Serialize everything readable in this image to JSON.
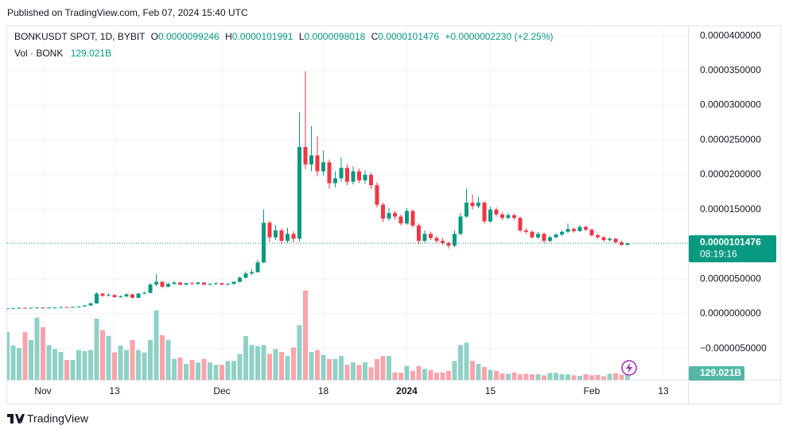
{
  "published": "Published on TradingView.com, Feb 07, 2024 15:40 UTC",
  "brand": "TradingView",
  "legend": {
    "symbol": "BONKUSDT SPOT, 1D, BYBIT",
    "o_key": "O",
    "o": "0.0000099246",
    "h_key": "H",
    "h": "0.0000101991",
    "l_key": "L",
    "l": "0.0000098018",
    "c_key": "C",
    "c": "0.0000101476",
    "change": "+0.0000002230 (+2.25%)",
    "vol_key": "Vol · BONK",
    "vol": "129.021B"
  },
  "chart_data": {
    "type": "candlestick",
    "up_color": "#089981",
    "down_color": "#f23645",
    "xlim": [
      0,
      114
    ],
    "xticks": [
      {
        "value": 6,
        "label": "Nov"
      },
      {
        "value": 18,
        "label": "13"
      },
      {
        "value": 36,
        "label": "Dec"
      },
      {
        "value": 53,
        "label": "18"
      },
      {
        "value": 67,
        "label": "2024"
      },
      {
        "value": 81,
        "label": "15"
      },
      {
        "value": 98,
        "label": "Feb"
      },
      {
        "value": 110,
        "label": "13"
      }
    ],
    "ylim": [
      -9.5e-06,
      4.15e-05
    ],
    "yticks": [
      {
        "value": 4e-05,
        "label": "0.0000400000"
      },
      {
        "value": 3.5e-05,
        "label": "0.0000350000"
      },
      {
        "value": 3e-05,
        "label": "0.0000300000"
      },
      {
        "value": 2.5e-05,
        "label": "0.0000250000"
      },
      {
        "value": 2e-05,
        "label": "0.0000200000"
      },
      {
        "value": 1.5e-05,
        "label": "0.0000150000"
      },
      {
        "value": 5e-06,
        "label": "0.0000050000"
      },
      {
        "value": 0,
        "label": "0.0000000000"
      },
      {
        "value": -5e-06,
        "label": "−0.0000050000"
      }
    ],
    "grid": true,
    "last_price_label": "0.0000101476",
    "countdown": "08:19:16",
    "ohlc": [
      [
        7.8e-07,
        8.4e-07,
        7.6e-07,
        8e-07
      ],
      [
        8e-07,
        8.5e-07,
        7.8e-07,
        8.2e-07
      ],
      [
        8.2e-07,
        8.8e-07,
        8e-07,
        8.5e-07
      ],
      [
        8.5e-07,
        8.7e-07,
        8e-07,
        8.3e-07
      ],
      [
        8.3e-07,
        8.9e-07,
        8.1e-07,
        8.6e-07
      ],
      [
        8.6e-07,
        9.3e-07,
        8.4e-07,
        9e-07
      ],
      [
        9e-07,
        9.2e-07,
        8.5e-07,
        8.8e-07
      ],
      [
        8.8e-07,
        9.3e-07,
        8.6e-07,
        9e-07
      ],
      [
        9e-07,
        9.5e-07,
        8.8e-07,
        9.2e-07
      ],
      [
        9.2e-07,
        9.8e-07,
        9e-07,
        9.5e-07
      ],
      [
        9.5e-07,
        9.7e-07,
        9e-07,
        9.3e-07
      ],
      [
        9.3e-07,
        1.04e-06,
        9.1e-07,
        1e-06
      ],
      [
        1e-06,
        1.09e-06,
        9.7e-07,
        1.05e-06
      ],
      [
        1.05e-06,
        1.25e-06,
        1.02e-06,
        1.2e-06
      ],
      [
        1.2e-06,
        1.6e-06,
        1.15e-06,
        1.5e-06
      ],
      [
        1.5e-06,
        3.1e-06,
        1.45e-06,
        2.9e-06
      ],
      [
        2.9e-06,
        3e-06,
        2.45e-06,
        2.6e-06
      ],
      [
        2.6e-06,
        2.95e-06,
        2.5e-06,
        2.7e-06
      ],
      [
        2.7e-06,
        2.8e-06,
        2.3e-06,
        2.4e-06
      ],
      [
        2.4e-06,
        2.65e-06,
        2.3e-06,
        2.5e-06
      ],
      [
        2.5e-06,
        2.95e-06,
        2.4e-06,
        2.8e-06
      ],
      [
        2.8e-06,
        2.85e-06,
        2.2e-06,
        2.3e-06
      ],
      [
        2.3e-06,
        3e-06,
        2.25e-06,
        2.9e-06
      ],
      [
        2.9e-06,
        3.2e-06,
        2.8e-06,
        3e-06
      ],
      [
        3e-06,
        4.4e-06,
        2.95e-06,
        4.2e-06
      ],
      [
        4.2e-06,
        5.7e-06,
        4e-06,
        4.6e-06
      ],
      [
        4.6e-06,
        4.7e-06,
        3.7e-06,
        3.9e-06
      ],
      [
        3.9e-06,
        4.5e-06,
        3.8e-06,
        4.3e-06
      ],
      [
        4.3e-06,
        4.7e-06,
        4.2e-06,
        4.5e-06
      ],
      [
        4.5e-06,
        4.6e-06,
        4.1e-06,
        4.2e-06
      ],
      [
        4.2e-06,
        4.5e-06,
        4.1e-06,
        4.4e-06
      ],
      [
        4.4e-06,
        4.55e-06,
        4.2e-06,
        4.3e-06
      ],
      [
        4.3e-06,
        4.6e-06,
        4.2e-06,
        4.5e-06
      ],
      [
        4.5e-06,
        4.55e-06,
        4.1e-06,
        4.2e-06
      ],
      [
        4.2e-06,
        4.4e-06,
        4.1e-06,
        4.3e-06
      ],
      [
        4.3e-06,
        4.5e-06,
        4.2e-06,
        4.4e-06
      ],
      [
        4.4e-06,
        4.45e-06,
        4.1e-06,
        4.2e-06
      ],
      [
        4.2e-06,
        4.4e-06,
        4.1e-06,
        4.3e-06
      ],
      [
        4.3e-06,
        4.7e-06,
        4.2e-06,
        4.6e-06
      ],
      [
        4.6e-06,
        5.4e-06,
        4.5e-06,
        5.2e-06
      ],
      [
        5.2e-06,
        6.1e-06,
        5.1e-06,
        5.8e-06
      ],
      [
        5.8e-06,
        6.4e-06,
        5.6e-06,
        6e-06
      ],
      [
        6e-06,
        7.8e-06,
        5.9e-06,
        7.4e-06
      ],
      [
        7.4e-06,
        1.5e-05,
        7.3e-06,
        1.31e-05
      ],
      [
        1.31e-05,
        1.34e-05,
        1.03e-05,
        1.1e-05
      ],
      [
        1.1e-05,
        1.28e-05,
        1.06e-05,
        1.2e-05
      ],
      [
        1.2e-05,
        1.23e-05,
        1e-05,
        1.05e-05
      ],
      [
        1.05e-05,
        1.24e-05,
        1.02e-05,
        1.15e-05
      ],
      [
        1.15e-05,
        1.19e-05,
        1.03e-05,
        1.08e-05
      ],
      [
        1.08e-05,
        2.9e-05,
        1.04e-05,
        2.4e-05
      ],
      [
        2.4e-05,
        3.49e-05,
        2.08e-05,
        2.15e-05
      ],
      [
        2.15e-05,
        2.7e-05,
        2.05e-05,
        2.28e-05
      ],
      [
        2.28e-05,
        2.55e-05,
        1.98e-05,
        2.05e-05
      ],
      [
        2.05e-05,
        2.35e-05,
        1.99e-05,
        2.18e-05
      ],
      [
        2.18e-05,
        2.22e-05,
        1.8e-05,
        1.88e-05
      ],
      [
        1.88e-05,
        2.05e-05,
        1.82e-05,
        1.95e-05
      ],
      [
        1.95e-05,
        2.25e-05,
        1.9e-05,
        2.1e-05
      ],
      [
        2.1e-05,
        2.15e-05,
        1.85e-05,
        1.9e-05
      ],
      [
        1.9e-05,
        2.12e-05,
        1.86e-05,
        2.05e-05
      ],
      [
        2.05e-05,
        2.09e-05,
        1.88e-05,
        1.92e-05
      ],
      [
        1.92e-05,
        2.06e-05,
        1.87e-05,
        2e-05
      ],
      [
        2e-05,
        2.03e-05,
        1.8e-05,
        1.85e-05
      ],
      [
        1.85e-05,
        1.89e-05,
        1.53e-05,
        1.57e-05
      ],
      [
        1.57e-05,
        1.6e-05,
        1.32e-05,
        1.37e-05
      ],
      [
        1.37e-05,
        1.52e-05,
        1.34e-05,
        1.45e-05
      ],
      [
        1.45e-05,
        1.48e-05,
        1.36e-05,
        1.4e-05
      ],
      [
        1.4e-05,
        1.43e-05,
        1.27e-05,
        1.3e-05
      ],
      [
        1.3e-05,
        1.52e-05,
        1.28e-05,
        1.48e-05
      ],
      [
        1.48e-05,
        1.5e-05,
        1.24e-05,
        1.27e-05
      ],
      [
        1.27e-05,
        1.3e-05,
        1e-05,
        1.05e-05
      ],
      [
        1.05e-05,
        1.2e-05,
        1.02e-05,
        1.15e-05
      ],
      [
        1.15e-05,
        1.18e-05,
        1.06e-05,
        1.09e-05
      ],
      [
        1.09e-05,
        1.12e-05,
        1.02e-05,
        1.05e-05
      ],
      [
        1.05e-05,
        1.09e-05,
        9.9e-06,
        1.02e-05
      ],
      [
        1.02e-05,
        1.04e-05,
        9.4e-06,
        9.8e-06
      ],
      [
        9.8e-06,
        1.2e-05,
        9.6e-06,
        1.15e-05
      ],
      [
        1.15e-05,
        1.45e-05,
        1.13e-05,
        1.4e-05
      ],
      [
        1.4e-05,
        1.8e-05,
        1.38e-05,
        1.6e-05
      ],
      [
        1.6e-05,
        1.72e-05,
        1.5e-05,
        1.55e-05
      ],
      [
        1.55e-05,
        1.68e-05,
        1.52e-05,
        1.6e-05
      ],
      [
        1.6e-05,
        1.62e-05,
        1.3e-05,
        1.33e-05
      ],
      [
        1.33e-05,
        1.54e-05,
        1.31e-05,
        1.5e-05
      ],
      [
        1.5e-05,
        1.53e-05,
        1.4e-05,
        1.43e-05
      ],
      [
        1.43e-05,
        1.46e-05,
        1.35e-05,
        1.38e-05
      ],
      [
        1.38e-05,
        1.45e-05,
        1.36e-05,
        1.42e-05
      ],
      [
        1.42e-05,
        1.44e-05,
        1.35e-05,
        1.38e-05
      ],
      [
        1.38e-05,
        1.4e-05,
        1.17e-05,
        1.2e-05
      ],
      [
        1.2e-05,
        1.23e-05,
        1.15e-05,
        1.18e-05
      ],
      [
        1.18e-05,
        1.2e-05,
        1.08e-05,
        1.1e-05
      ],
      [
        1.1e-05,
        1.18e-05,
        1.08e-05,
        1.15e-05
      ],
      [
        1.15e-05,
        1.17e-05,
        1.02e-05,
        1.05e-05
      ],
      [
        1.05e-05,
        1.12e-05,
        1.03e-05,
        1.1e-05
      ],
      [
        1.1e-05,
        1.16e-05,
        1.09e-05,
        1.14e-05
      ],
      [
        1.14e-05,
        1.2e-05,
        1.12e-05,
        1.18e-05
      ],
      [
        1.18e-05,
        1.3e-05,
        1.16e-05,
        1.22e-05
      ],
      [
        1.22e-05,
        1.24e-05,
        1.17e-05,
        1.19e-05
      ],
      [
        1.19e-05,
        1.28e-05,
        1.18e-05,
        1.25e-05
      ],
      [
        1.25e-05,
        1.27e-05,
        1.19e-05,
        1.21e-05
      ],
      [
        1.21e-05,
        1.23e-05,
        1.11e-05,
        1.13e-05
      ],
      [
        1.13e-05,
        1.15e-05,
        1.08e-05,
        1.1e-05
      ],
      [
        1.1e-05,
        1.12e-05,
        1.04e-05,
        1.06e-05
      ],
      [
        1.06e-05,
        1.1e-05,
        1.04e-05,
        1.08e-05
      ],
      [
        1.08e-05,
        1.09e-05,
        1.01e-05,
        1.03e-05
      ],
      [
        1.03e-05,
        1.05e-05,
        9.8e-06,
        9.9246e-06
      ],
      [
        9.9246e-06,
        1.01991e-05,
        9.8018e-06,
        1.01476e-05
      ]
    ],
    "volume": [
      960,
      690,
      640,
      960,
      800,
      1250,
      1060,
      700,
      620,
      560,
      400,
      400,
      600,
      580,
      600,
      1230,
      1000,
      880,
      550,
      690,
      600,
      800,
      600,
      550,
      800,
      1400,
      900,
      800,
      420,
      450,
      320,
      400,
      350,
      420,
      350,
      300,
      300,
      380,
      380,
      520,
      880,
      700,
      680,
      700,
      520,
      620,
      560,
      480,
      650,
      1100,
      1800,
      560,
      600,
      500,
      420,
      420,
      480,
      300,
      350,
      300,
      350,
      250,
      420,
      480,
      480,
      150,
      140,
      280,
      180,
      280,
      220,
      200,
      140,
      150,
      180,
      380,
      700,
      750,
      380,
      320,
      260,
      200,
      180,
      130,
      120,
      150,
      110,
      120,
      110,
      110,
      90,
      140,
      140,
      110,
      110,
      90,
      80,
      110,
      90,
      100,
      70,
      120,
      130,
      100,
      129.021
    ],
    "volume_value_labels_last": "129.021B"
  }
}
